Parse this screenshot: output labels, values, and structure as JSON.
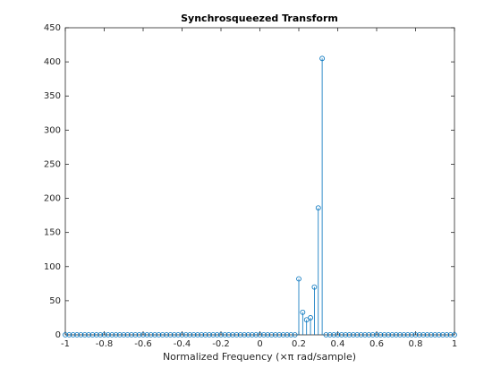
{
  "chart_data": {
    "type": "stem",
    "title": "Synchrosqueezed Transform",
    "x_label": "Normalized Frequency (×π rad/sample)",
    "x": [
      -1,
      -0.98,
      -0.96,
      -0.94,
      -0.92,
      -0.9,
      -0.88,
      -0.86,
      -0.84,
      -0.82,
      -0.8,
      -0.78,
      -0.76,
      -0.74,
      -0.72,
      -0.7,
      -0.68,
      -0.66,
      -0.64,
      -0.62,
      -0.6,
      -0.58,
      -0.56,
      -0.54,
      -0.52,
      -0.5,
      -0.48,
      -0.46,
      -0.44,
      -0.42,
      -0.4,
      -0.38,
      -0.36,
      -0.34,
      -0.32,
      -0.3,
      -0.28,
      -0.26,
      -0.24,
      -0.22,
      -0.2,
      -0.18,
      -0.16,
      -0.14,
      -0.12,
      -0.1,
      -0.08,
      -0.06,
      -0.04,
      -0.02,
      0,
      0.02,
      0.04,
      0.06,
      0.08,
      0.1,
      0.12,
      0.14,
      0.16,
      0.18,
      0.2,
      0.22,
      0.24,
      0.26,
      0.28,
      0.3,
      0.32,
      0.34,
      0.36,
      0.38,
      0.4,
      0.42,
      0.44,
      0.46,
      0.48,
      0.5,
      0.52,
      0.54,
      0.56,
      0.58,
      0.6,
      0.62,
      0.64,
      0.66,
      0.68,
      0.7,
      0.72,
      0.74,
      0.76,
      0.78,
      0.8,
      0.82,
      0.84,
      0.86,
      0.88,
      0.9,
      0.92,
      0.94,
      0.96,
      0.98,
      1
    ],
    "values": [
      0,
      0,
      0,
      0,
      0,
      0,
      0,
      0,
      0,
      0,
      0,
      0,
      0,
      0,
      0,
      0,
      0,
      0,
      0,
      0,
      0,
      0,
      0,
      0,
      0,
      0,
      0,
      0,
      0,
      0,
      0,
      0,
      0,
      0,
      0,
      0,
      0,
      0,
      0,
      0,
      0,
      0,
      0,
      0,
      0,
      0,
      0,
      0,
      0,
      0,
      0,
      0,
      0,
      0,
      0,
      0,
      0,
      0,
      0,
      0,
      82,
      33,
      22,
      25,
      70,
      186,
      405,
      0,
      0,
      0,
      0,
      0,
      0,
      0,
      0,
      0,
      0,
      0,
      0,
      0,
      0,
      0,
      0,
      0,
      0,
      0,
      0,
      0,
      0,
      0,
      0,
      0,
      0,
      0,
      0,
      0,
      0,
      0,
      0,
      0,
      0
    ],
    "color": "#0072bd",
    "xlim": [
      -1,
      1
    ],
    "xticks": [
      -1,
      -0.8,
      -0.6,
      -0.4,
      -0.2,
      0,
      0.2,
      0.4,
      0.6,
      0.8,
      1
    ],
    "ylim": [
      0,
      450
    ],
    "yticks": [
      0,
      50,
      100,
      150,
      200,
      250,
      300,
      350,
      400,
      450
    ]
  }
}
